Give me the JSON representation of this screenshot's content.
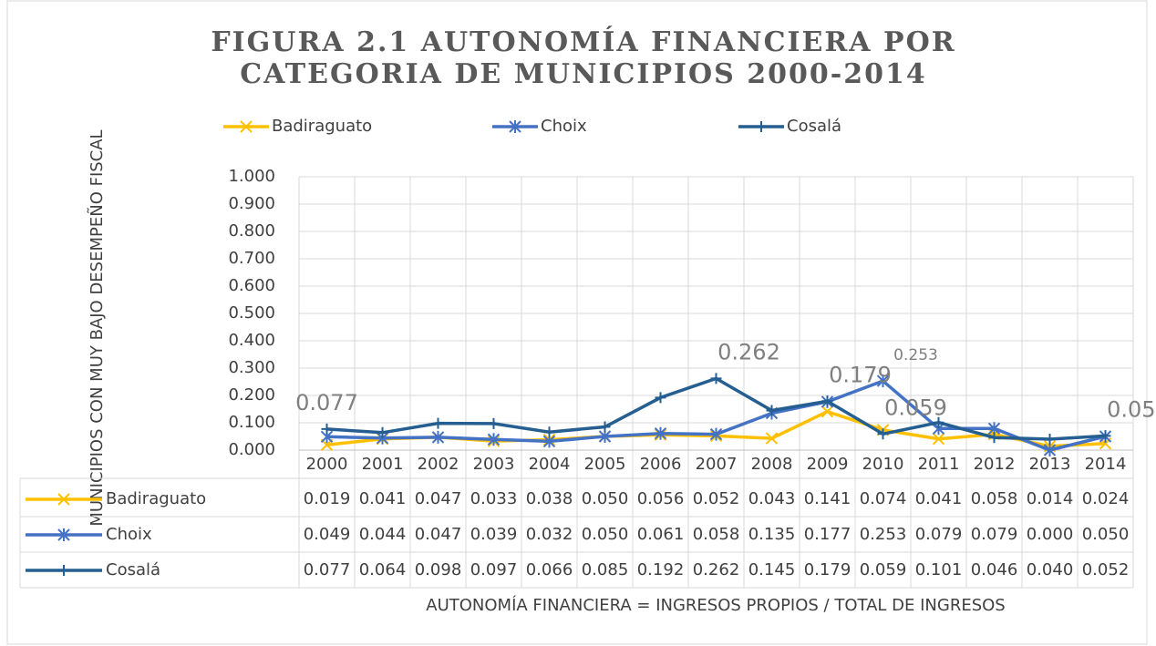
{
  "chart_data": {
    "type": "line",
    "title": [
      "FIGURA 2.1 AUTONOMÍA FINANCIERA POR",
      "CATEGORIA DE MUNICIPIOS 2000-2014"
    ],
    "y_axis_label": "MUNICIPIOS CON MUY BAJO DESEMPEÑO FISCAL",
    "x_axis_label": "AUTONOMÍA FINANCIERA = INGRESOS PROPIOS / TOTAL DE INGRESOS",
    "categories": [
      "2000",
      "2001",
      "2002",
      "2003",
      "2004",
      "2005",
      "2006",
      "2007",
      "2008",
      "2009",
      "2010",
      "2011",
      "2012",
      "2013",
      "2014"
    ],
    "series": [
      {
        "name": "Badiraguato",
        "color": "#FFC000",
        "marker": "x",
        "values": [
          0.019,
          0.041,
          0.047,
          0.033,
          0.038,
          0.05,
          0.056,
          0.052,
          0.043,
          0.141,
          0.074,
          0.041,
          0.058,
          0.014,
          0.024
        ],
        "value_labels": [
          "0.019",
          "0.041",
          "0.047",
          "0.033",
          "0.038",
          "0.050",
          "0.056",
          "0.052",
          "0.043",
          "0.141",
          "0.074",
          "0.041",
          "0.058",
          "0.014",
          "0.024"
        ],
        "labeled_points": []
      },
      {
        "name": "Choix",
        "color": "#4472C4",
        "marker": "star",
        "values": [
          0.049,
          0.044,
          0.047,
          0.039,
          0.032,
          0.05,
          0.061,
          0.058,
          0.135,
          0.177,
          0.253,
          0.079,
          0.079,
          0.0,
          0.05
        ],
        "value_labels": [
          "0.049",
          "0.044",
          "0.047",
          "0.039",
          "0.032",
          "0.050",
          "0.061",
          "0.058",
          "0.135",
          "0.177",
          "0.253",
          "0.079",
          "0.079",
          "0.000",
          "0.050"
        ],
        "labeled_points": [
          10
        ]
      },
      {
        "name": "Cosalá",
        "color": "#255E91",
        "marker": "plus",
        "values": [
          0.077,
          0.064,
          0.098,
          0.097,
          0.066,
          0.085,
          0.192,
          0.262,
          0.145,
          0.179,
          0.059,
          0.101,
          0.046,
          0.04,
          0.052
        ],
        "value_labels": [
          "0.077",
          "0.064",
          "0.098",
          "0.097",
          "0.066",
          "0.085",
          "0.192",
          "0.262",
          "0.145",
          "0.179",
          "0.059",
          "0.101",
          "0.046",
          "0.040",
          "0.052"
        ],
        "labeled_points": [
          0,
          7,
          9,
          10,
          14
        ]
      }
    ],
    "ylim": [
      0,
      1
    ],
    "yticks": [
      {
        "value": 0,
        "label": "0.000"
      },
      {
        "value": 0.1,
        "label": "0.100"
      },
      {
        "value": 0.2,
        "label": "0.200"
      },
      {
        "value": 0.3,
        "label": "0.300"
      },
      {
        "value": 0.4,
        "label": "0.400"
      },
      {
        "value": 0.5,
        "label": "0.500"
      },
      {
        "value": 0.6,
        "label": "0.600"
      },
      {
        "value": 0.7,
        "label": "0.700"
      },
      {
        "value": 0.8,
        "label": "0.800"
      },
      {
        "value": 0.9,
        "label": "0.900"
      },
      {
        "value": 1,
        "label": "1.000"
      }
    ],
    "grid": true,
    "legend": "top",
    "data_table": true
  }
}
